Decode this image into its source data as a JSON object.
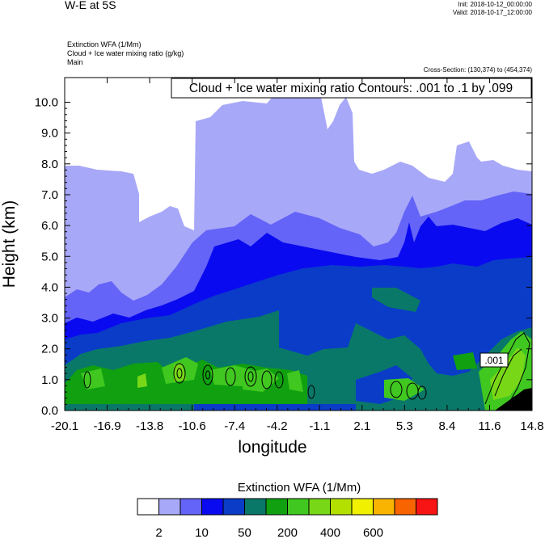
{
  "header": {
    "title": "W-E at 5S",
    "init": "Init: 2018-10-12_00:00:00",
    "valid": "Valid: 2018-10-17_12:00:00",
    "fields": [
      "Extinction WFA   (1/Mm)",
      "Cloud + Ice water mixing ratio   (g/kg)",
      "Main"
    ],
    "cross_section": "Cross-Section: (130,374) to (454,374)"
  },
  "chart_data": {
    "type": "heatmap",
    "title": "",
    "xlabel": "longitude",
    "ylabel": "Height (km)",
    "xlim": [
      -20.1,
      14.8
    ],
    "ylim": [
      0.0,
      10.8
    ],
    "x_ticks": [
      "-20.1",
      "-16.9",
      "-13.8",
      "-10.6",
      "-7.4",
      "-4.2",
      "-1.1",
      "2.1",
      "5.3",
      "8.4",
      "11.6",
      "14.8"
    ],
    "y_ticks": [
      "0.0",
      "1.0",
      "2.0",
      "3.0",
      "4.0",
      "5.0",
      "6.0",
      "7.0",
      "8.0",
      "9.0",
      "10.0"
    ],
    "contour_annotation": "Cloud + Ice water mixing ratio Contours: .001 to .1 by .099",
    "contour_label": ".001",
    "colorbar": {
      "title": "Extinction WFA  (1/Mm)",
      "labels": [
        "2",
        "10",
        "50",
        "200",
        "400",
        "600"
      ],
      "colors": [
        "#ffffff",
        "#a8a8f8",
        "#6464f8",
        "#0a0af0",
        "#0a3cc8",
        "#0a7868",
        "#10a010",
        "#40c820",
        "#78d818",
        "#b4e000",
        "#f0f000",
        "#f8b400",
        "#f86400",
        "#f81414"
      ]
    }
  }
}
